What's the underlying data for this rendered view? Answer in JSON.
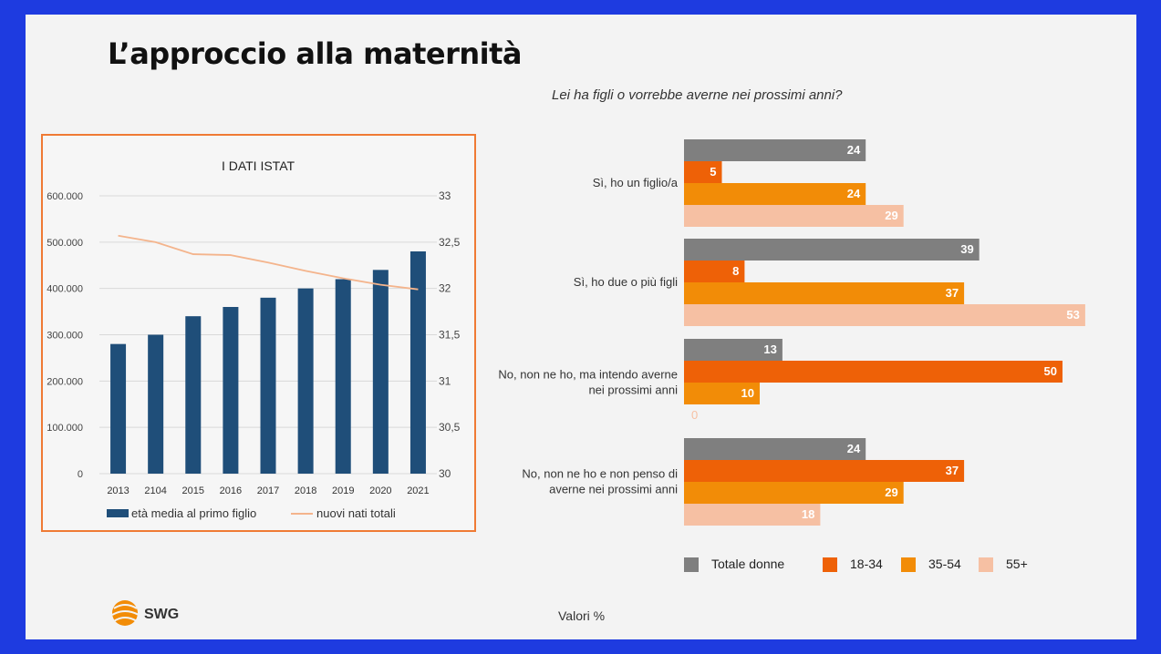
{
  "slide": {
    "title": "L’approccio alla maternità",
    "question": "Lei ha figli o vorrebbe averne nei prossimi anni?",
    "footer_note": "Valori %",
    "logo_text": "SWG"
  },
  "colors": {
    "background": "#1e3be0",
    "slide": "#f3f3f3",
    "box_border": "#ef7a34",
    "bar_istat": "#1f4e79",
    "line_istat": "#f4b48c",
    "totale": "#7f7f7f",
    "age_18_34": "#ee6107",
    "age_35_54": "#f28c07",
    "age_55_plus": "#f6c0a3"
  },
  "chart_data": [
    {
      "type": "bar",
      "title": "I DATI ISTAT",
      "categories": [
        "2013",
        "2104",
        "2015",
        "2016",
        "2017",
        "2018",
        "2019",
        "2020",
        "2021"
      ],
      "left_axis": {
        "ticks": [
          "0",
          "100.000",
          "200.000",
          "300.000",
          "400.000",
          "500.000",
          "600.000"
        ],
        "range": [
          0,
          600000
        ]
      },
      "right_axis": {
        "ticks": [
          "30",
          "30,5",
          "31",
          "31,5",
          "32",
          "32,5",
          "33"
        ],
        "range": [
          30,
          33
        ]
      },
      "series": [
        {
          "name": "età media al primo figlio",
          "kind": "bar",
          "axis": "left",
          "values": [
            280000,
            300000,
            340000,
            360000,
            380000,
            400000,
            420000,
            440000,
            480000
          ]
        },
        {
          "name": "nuovi nati totali",
          "kind": "line",
          "axis": "right",
          "values": [
            32.57,
            32.5,
            32.37,
            32.36,
            32.28,
            32.19,
            32.11,
            32.04,
            31.99
          ]
        }
      ],
      "grid": true,
      "legend": "bottom"
    },
    {
      "type": "bar",
      "orientation": "horizontal",
      "categories": [
        [
          "Sì, ho un figlio/a"
        ],
        [
          "Sì, ho due o più figli"
        ],
        [
          "No, non ne ho, ma intendo averne",
          "nei prossimi anni"
        ],
        [
          "No, non ne ho e non penso di",
          "averne nei prossimi anni"
        ]
      ],
      "series": [
        {
          "name": "Totale donne",
          "values": [
            24,
            39,
            13,
            24
          ]
        },
        {
          "name": "18-34",
          "values": [
            5,
            8,
            50,
            37
          ]
        },
        {
          "name": "35-54",
          "values": [
            24,
            37,
            10,
            29
          ]
        },
        {
          "name": "55+",
          "values": [
            29,
            53,
            0,
            18
          ]
        }
      ],
      "legend": "bottom"
    }
  ]
}
